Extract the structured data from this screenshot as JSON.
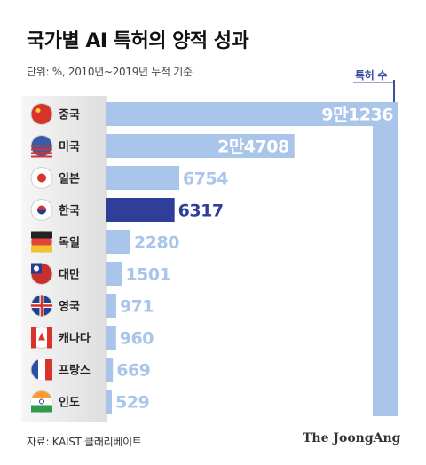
{
  "title": "국가별 AI 특허의 양적 성과",
  "subtitle": "단위: %, 2010년~2019년 누적 기준",
  "legend_label": "특허 수",
  "source": "자료: KAIST·클래리베이트",
  "brand": "The JoongAng",
  "colors": {
    "bar": "#a9c5ea",
    "highlight_bar": "#2f3f99",
    "value_text": "#ffffff",
    "value_text_light": "#a9c5ea",
    "value_text_highlight": "#2f3f99",
    "legend_accent": "#3a4fa0",
    "label_panel": "#ececec"
  },
  "chart_data": {
    "type": "bar",
    "orientation": "horizontal",
    "categories": [
      "중국",
      "미국",
      "일본",
      "한국",
      "독일",
      "대만",
      "영국",
      "캐나다",
      "프랑스",
      "인도"
    ],
    "values": [
      91236,
      24708,
      6754,
      6317,
      2280,
      1501,
      971,
      960,
      669,
      529
    ],
    "value_labels": [
      "9만1236",
      "2만4708",
      "6754",
      "6317",
      "2280",
      "1501",
      "971",
      "960",
      "669",
      "529"
    ],
    "flag_icons": [
      "china-flag-icon",
      "usa-flag-icon",
      "japan-flag-icon",
      "korea-flag-icon",
      "germany-flag-icon",
      "taiwan-flag-icon",
      "uk-flag-icon",
      "canada-flag-icon",
      "france-flag-icon",
      "india-flag-icon"
    ],
    "highlight": "한국",
    "axis_max": 91236
  }
}
